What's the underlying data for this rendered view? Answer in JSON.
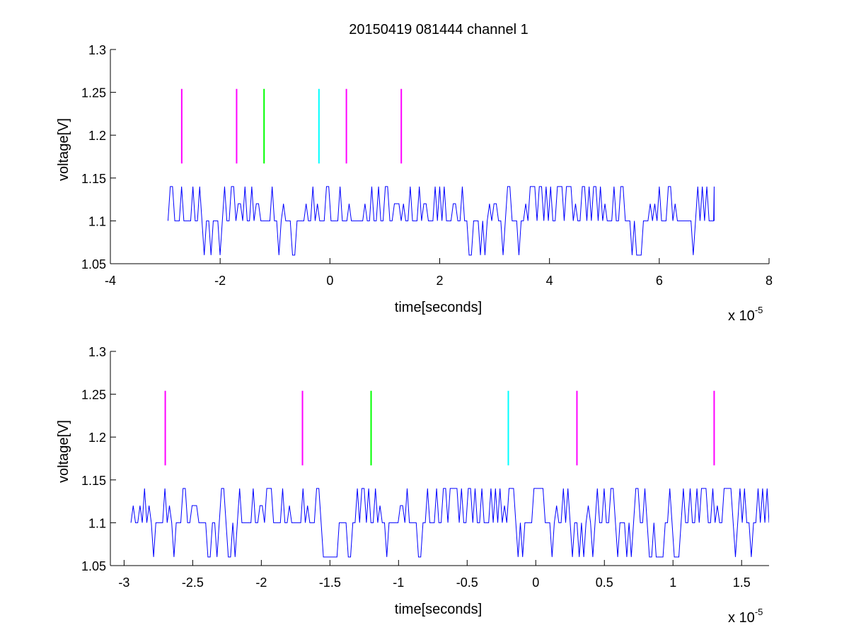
{
  "figure": {
    "title": "20150419 081444 channel 1"
  },
  "chart_data": [
    {
      "type": "line",
      "id": "top",
      "title": "20150419 081444 channel 1",
      "xlabel": "time[seconds]",
      "ylabel": "voltage[V]",
      "x_multiplier": "x 10",
      "x_multiplier_exp": "-5",
      "xlim": [
        -4,
        8
      ],
      "ylim": [
        1.05,
        1.3
      ],
      "xticks": [
        -4,
        -2,
        0,
        2,
        4,
        6,
        8
      ],
      "xtick_labels": [
        "-4",
        "-2",
        "0",
        "2",
        "4",
        "6",
        "8"
      ],
      "yticks": [
        1.05,
        1.1,
        1.15,
        1.2,
        1.25,
        1.3
      ],
      "ytick_labels": [
        "1.05",
        "1.1",
        "1.15",
        "1.2",
        "1.25",
        "1.3"
      ],
      "grid": false,
      "signal": {
        "color": "#0000ff",
        "x_start": -2.95,
        "x_end": 7.0,
        "baseline": 1.1,
        "high": 1.14,
        "mid_high": 1.12,
        "low": 1.06
      },
      "markers": [
        {
          "x": -2.7,
          "y_from": 1.167,
          "y_to": 1.254,
          "color": "#ff00ff"
        },
        {
          "x": -1.7,
          "y_from": 1.167,
          "y_to": 1.254,
          "color": "#ff00ff"
        },
        {
          "x": -1.2,
          "y_from": 1.167,
          "y_to": 1.254,
          "color": "#00ff00"
        },
        {
          "x": -0.2,
          "y_from": 1.167,
          "y_to": 1.254,
          "color": "#00ffff"
        },
        {
          "x": 0.3,
          "y_from": 1.167,
          "y_to": 1.254,
          "color": "#ff00ff"
        },
        {
          "x": 1.3,
          "y_from": 1.167,
          "y_to": 1.254,
          "color": "#ff00ff"
        }
      ]
    },
    {
      "type": "line",
      "id": "bottom",
      "title": "",
      "xlabel": "time[seconds]",
      "ylabel": "voltage[V]",
      "x_multiplier": "x 10",
      "x_multiplier_exp": "-5",
      "xlim": [
        -3.1,
        1.7
      ],
      "ylim": [
        1.05,
        1.3
      ],
      "xticks": [
        -3,
        -2.5,
        -2,
        -1.5,
        -1,
        -0.5,
        0,
        0.5,
        1,
        1.5
      ],
      "xtick_labels": [
        "-3",
        "-2.5",
        "-2",
        "-1.5",
        "-1",
        "-0.5",
        "0",
        "0.5",
        "1",
        "1.5"
      ],
      "yticks": [
        1.05,
        1.1,
        1.15,
        1.2,
        1.25,
        1.3
      ],
      "ytick_labels": [
        "1.05",
        "1.1",
        "1.15",
        "1.2",
        "1.25",
        "1.3"
      ],
      "grid": false,
      "signal": {
        "color": "#0000ff",
        "x_start": -2.95,
        "x_end": 1.7,
        "baseline": 1.1,
        "high": 1.14,
        "mid_high": 1.12,
        "low": 1.06
      },
      "markers": [
        {
          "x": -2.7,
          "y_from": 1.167,
          "y_to": 1.254,
          "color": "#ff00ff"
        },
        {
          "x": -1.7,
          "y_from": 1.167,
          "y_to": 1.254,
          "color": "#ff00ff"
        },
        {
          "x": -1.2,
          "y_from": 1.167,
          "y_to": 1.254,
          "color": "#00ff00"
        },
        {
          "x": -0.2,
          "y_from": 1.167,
          "y_to": 1.254,
          "color": "#00ffff"
        },
        {
          "x": 0.3,
          "y_from": 1.167,
          "y_to": 1.254,
          "color": "#ff00ff"
        },
        {
          "x": 1.3,
          "y_from": 1.167,
          "y_to": 1.254,
          "color": "#ff00ff"
        }
      ]
    }
  ]
}
